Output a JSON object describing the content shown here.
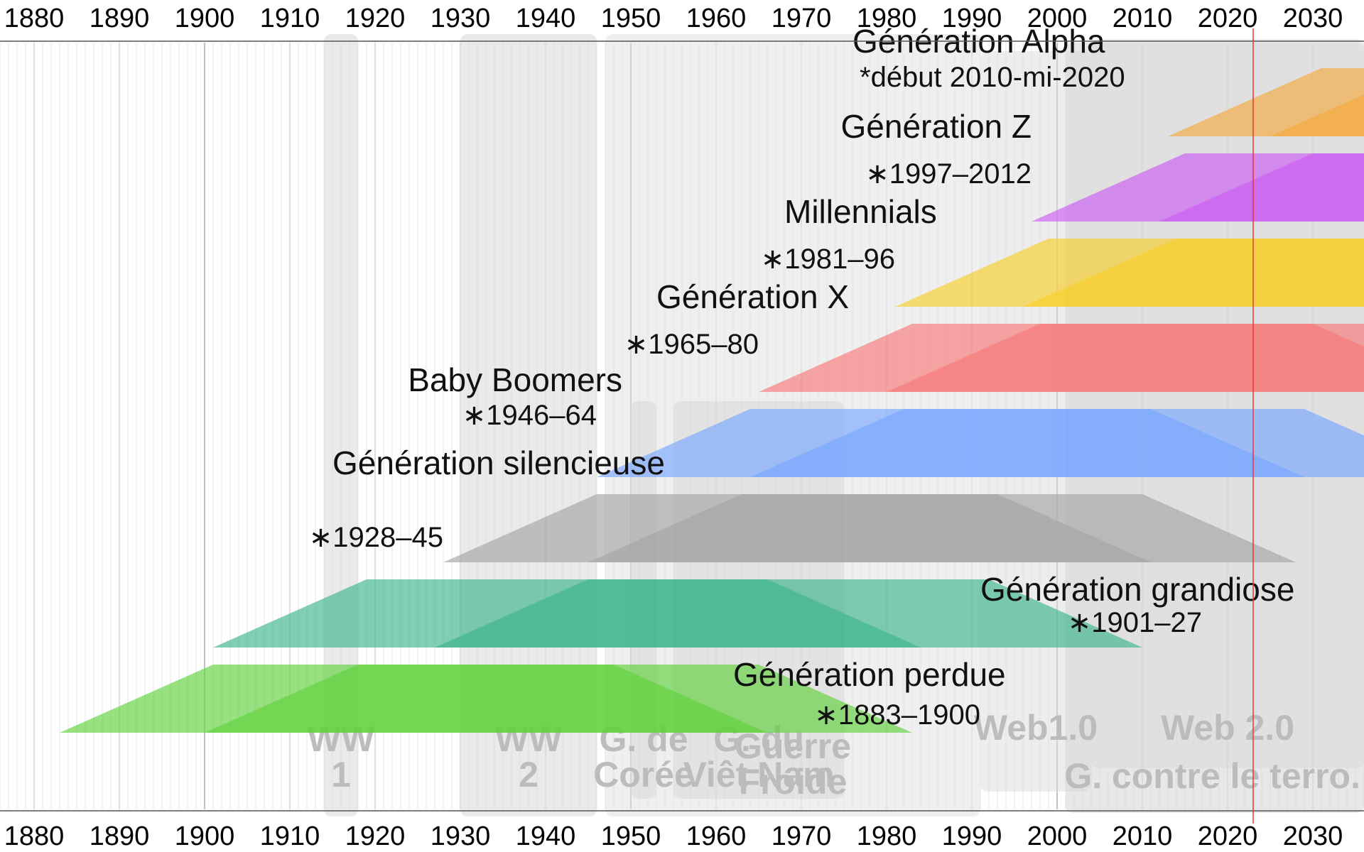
{
  "chart_data": {
    "type": "timeline",
    "x_axis": {
      "min": 1876,
      "max": 2036,
      "ticks": [
        1880,
        1890,
        1900,
        1910,
        1920,
        1930,
        1940,
        1950,
        1960,
        1970,
        1980,
        1990,
        2000,
        2010,
        2020,
        2030
      ]
    },
    "current_year": 2023,
    "events": [
      {
        "name": "WW 1",
        "lines": [
          "WW",
          "1"
        ],
        "start": 1914,
        "end": 1918,
        "color": "#d8d8d8"
      },
      {
        "name": "WW 2",
        "lines": [
          "WW",
          "2"
        ],
        "start": 1930,
        "end": 1946,
        "color": "#d8d8d8"
      },
      {
        "name": "G. de Corée",
        "lines": [
          "G. de",
          "Corée"
        ],
        "start": 1950,
        "end": 1953,
        "color": "#d0d0d0"
      },
      {
        "name": "G. du Viêt Nam",
        "lines": [
          "G. du",
          "Viêt Nam"
        ],
        "start": 1955,
        "end": 1975,
        "color": "#d0d0d0"
      },
      {
        "name": "Guerre Froide",
        "lines": [
          "Guerre",
          "Froide"
        ],
        "start": 1947,
        "end": 1991,
        "color": "#e2e2e2"
      },
      {
        "name": "Web1.0",
        "lines": [
          "Web1.0"
        ],
        "start": 1991,
        "end": 2004,
        "color": "#dedede"
      },
      {
        "name": "Web 2.0",
        "lines": [
          "Web 2.0"
        ],
        "start": 2004,
        "end": 2036,
        "color": "#dedede"
      },
      {
        "name": "G. contre le terro.",
        "lines": [
          "G. contre le terro."
        ],
        "start": 2001,
        "end": 2036,
        "color": "#d6d6d6"
      }
    ],
    "generations": [
      {
        "name": "Génération perdue",
        "range": "∗1883–1900",
        "birth_start": 1883,
        "birth_end": 1900,
        "color": "#5fd13c",
        "label_year": 1962,
        "label_anchor": "start"
      },
      {
        "name": "Génération grandiose",
        "range": "∗1901–27",
        "birth_start": 1901,
        "birth_end": 1927,
        "color": "#3cb38a",
        "label_year": 1991,
        "label_anchor": "start"
      },
      {
        "name": "Génération silencieuse",
        "range": "∗1928–45",
        "birth_start": 1928,
        "birth_end": 1945,
        "color": "#a5a5a5",
        "label_year": 1915,
        "label_anchor": "start"
      },
      {
        "name": "Baby Boomers",
        "range": "∗1946–64",
        "birth_start": 1946,
        "birth_end": 1964,
        "color": "#78a8ff",
        "label_year": 1949,
        "label_anchor": "end"
      },
      {
        "name": "Génération X",
        "range": "∗1965–80",
        "birth_start": 1965,
        "birth_end": 1980,
        "color": "#f87878",
        "label_year": 1953,
        "label_anchor": "start"
      },
      {
        "name": "Millennials",
        "range": "∗1981–96",
        "birth_start": 1981,
        "birth_end": 1996,
        "color": "#f8cf2a",
        "label_year": 1968,
        "label_anchor": "start"
      },
      {
        "name": "Génération Z",
        "range": "∗1997–2012",
        "birth_start": 1997,
        "birth_end": 2012,
        "color": "#cb5cf2",
        "label_year": 1997,
        "label_anchor": "end"
      },
      {
        "name": "Génération Alpha",
        "range": "*début 2010-mi-2020",
        "birth_start": 2013,
        "birth_end": 2025,
        "color": "#f5a93e",
        "label_year": 1976,
        "label_anchor": "start"
      }
    ]
  }
}
